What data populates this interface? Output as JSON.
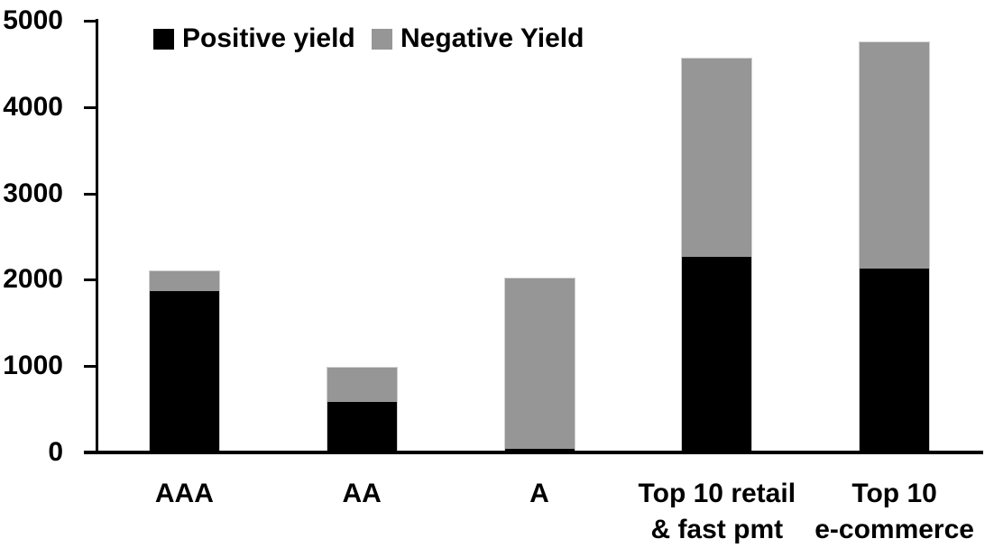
{
  "chart_data": {
    "type": "bar",
    "stacked": true,
    "title": "",
    "xlabel": "",
    "ylabel": "",
    "categories": [
      "AAA",
      "AA",
      "A",
      "Top 10 retail\n& fast pmt",
      "Top 10\ne-commerce"
    ],
    "series": [
      {
        "name": "Positive yield",
        "color": "#000000",
        "values": [
          1880,
          600,
          50,
          2280,
          2140
        ]
      },
      {
        "name": "Negative Yield",
        "color": "#969696",
        "values": [
          230,
          390,
          1980,
          2290,
          2620
        ]
      }
    ],
    "totals": [
      2110,
      990,
      2030,
      4570,
      4760
    ],
    "ylim": [
      0,
      5000
    ],
    "ytick_step": 1000,
    "ytick_labels": [
      "0",
      "1000",
      "2000",
      "3000",
      "4000",
      "5000"
    ],
    "legend_position": "top",
    "grid": false,
    "colors": {
      "axis": "#000000",
      "positive_series": "#000000",
      "negative_series": "#969696",
      "background": "#ffffff",
      "bar_outline": "#d0d0d0"
    }
  }
}
